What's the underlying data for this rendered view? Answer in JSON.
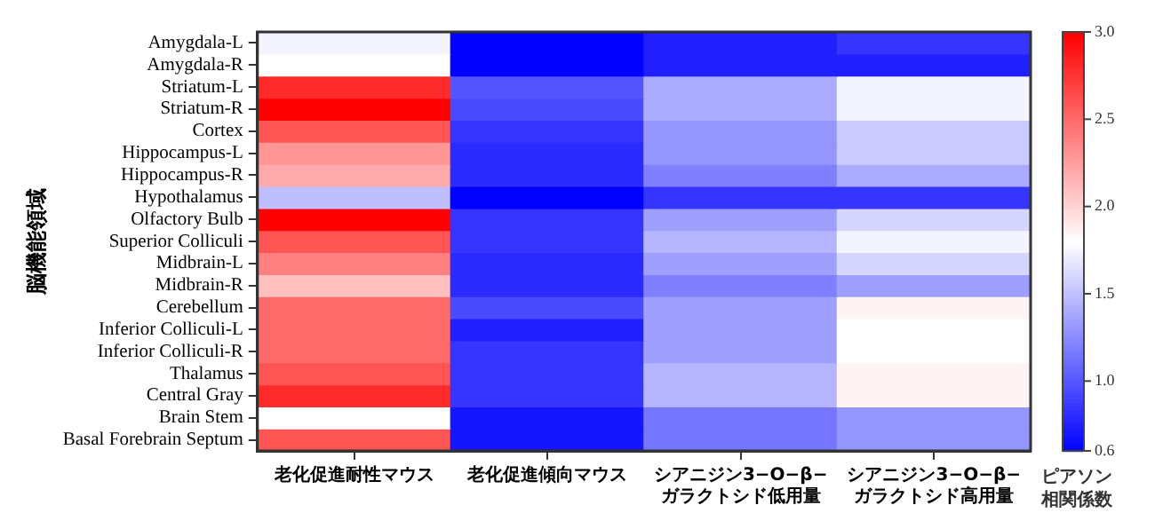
{
  "chart_data": {
    "type": "heatmap",
    "ylabel": "脳機能領域",
    "clabel": "ピアソン相関係数",
    "categories": [
      "老化促進耐性マウス",
      "老化促進傾向マウス",
      "シアニジン3−O−β−ガラクトシド低用量",
      "シアニジン3−O−β−ガラクトシド高用量"
    ],
    "y_categories": [
      "Amygdala-L",
      "Amygdala-R",
      "Striatum-L",
      "Striatum-R",
      "Cortex",
      "Hippocampus-L",
      "Hippocampus-R",
      "Hypothalamus",
      "Olfactory Bulb",
      "Superior Colliculi",
      "Midbrain-L",
      "Midbrain-R",
      "Cerebellum",
      "Inferior Colliculi-L",
      "Inferior Colliculi-R",
      "Thalamus",
      "Central Gray",
      "Brain Stem",
      "Basal Forebrain Septum"
    ],
    "cells": [
      [
        1.75,
        0.6,
        0.75,
        0.85
      ],
      [
        1.8,
        0.6,
        0.75,
        0.75
      ],
      [
        2.8,
        1.0,
        1.4,
        1.75
      ],
      [
        3.0,
        0.95,
        1.4,
        1.75
      ],
      [
        2.6,
        0.85,
        1.3,
        1.55
      ],
      [
        2.3,
        0.8,
        1.3,
        1.55
      ],
      [
        2.2,
        0.8,
        1.2,
        1.4
      ],
      [
        1.5,
        0.6,
        0.85,
        0.85
      ],
      [
        3.0,
        0.85,
        1.35,
        1.6
      ],
      [
        2.6,
        0.85,
        1.45,
        1.75
      ],
      [
        2.4,
        0.8,
        1.35,
        1.6
      ],
      [
        2.1,
        0.8,
        1.2,
        1.35
      ],
      [
        2.5,
        0.95,
        1.35,
        1.85
      ],
      [
        2.5,
        0.75,
        1.35,
        1.8
      ],
      [
        2.5,
        0.85,
        1.35,
        1.8
      ],
      [
        2.6,
        0.85,
        1.45,
        1.85
      ],
      [
        2.8,
        0.85,
        1.45,
        1.85
      ],
      [
        1.8,
        0.7,
        1.15,
        1.3
      ],
      [
        2.6,
        0.7,
        1.15,
        1.3
      ]
    ],
    "clim": [
      0.6,
      3.0
    ],
    "cticks": [
      {
        "value": 0.6,
        "label": "0.6"
      },
      {
        "value": 1.0,
        "label": "1.0"
      },
      {
        "value": 1.5,
        "label": "1.5"
      },
      {
        "value": 2.0,
        "label": "2.0"
      },
      {
        "value": 2.5,
        "label": "2.5"
      },
      {
        "value": 3.0,
        "label": "3.0"
      }
    ]
  }
}
